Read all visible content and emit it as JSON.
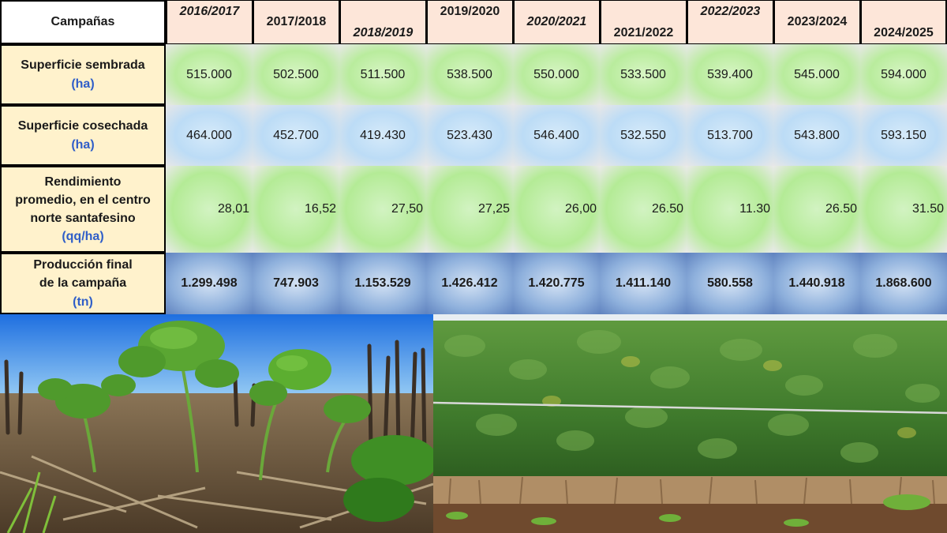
{
  "table": {
    "corner_label": "Campañas",
    "campaigns": [
      "2016/2017",
      "2017/2018",
      "2018/2019",
      "2019/2020",
      "2020/2021",
      "2021/2022",
      "2022/2023",
      "2023/2024",
      "2024/2025"
    ],
    "rows": [
      {
        "label_lines": [
          "Superficie sembrada"
        ],
        "unit": "(ha)",
        "values": [
          "515.000",
          "502.500",
          "511.500",
          "538.500",
          "550.000",
          "533.500",
          "539.400",
          "545.000",
          "594.000"
        ]
      },
      {
        "label_lines": [
          "Superficie cosechada"
        ],
        "unit": "(ha)",
        "values": [
          "464.000",
          "452.700",
          "419.430",
          "523.430",
          "546.400",
          "532.550",
          "513.700",
          "543.800",
          "593.150"
        ]
      },
      {
        "label_lines": [
          "Rendimiento",
          "promedio, en el centro",
          "norte santafesino"
        ],
        "unit": "(qq/ha)",
        "values": [
          "28,01",
          "16,52",
          "27,50",
          "27,25",
          "26,00",
          "26.50",
          "11.30",
          "26.50",
          "31.50"
        ]
      },
      {
        "label_lines": [
          "Producción final",
          "de la campaña"
        ],
        "unit": "(tn)",
        "values": [
          "1.299.498",
          "747.903",
          "1.153.529",
          "1.426.412",
          "1.420.775",
          "1.411.140",
          "580.558",
          "1.440.918",
          "1.868.600"
        ]
      }
    ]
  },
  "photos": {
    "left": "soybean-seedlings-in-stubble",
    "right": "mature-soybean-crop-row"
  }
}
